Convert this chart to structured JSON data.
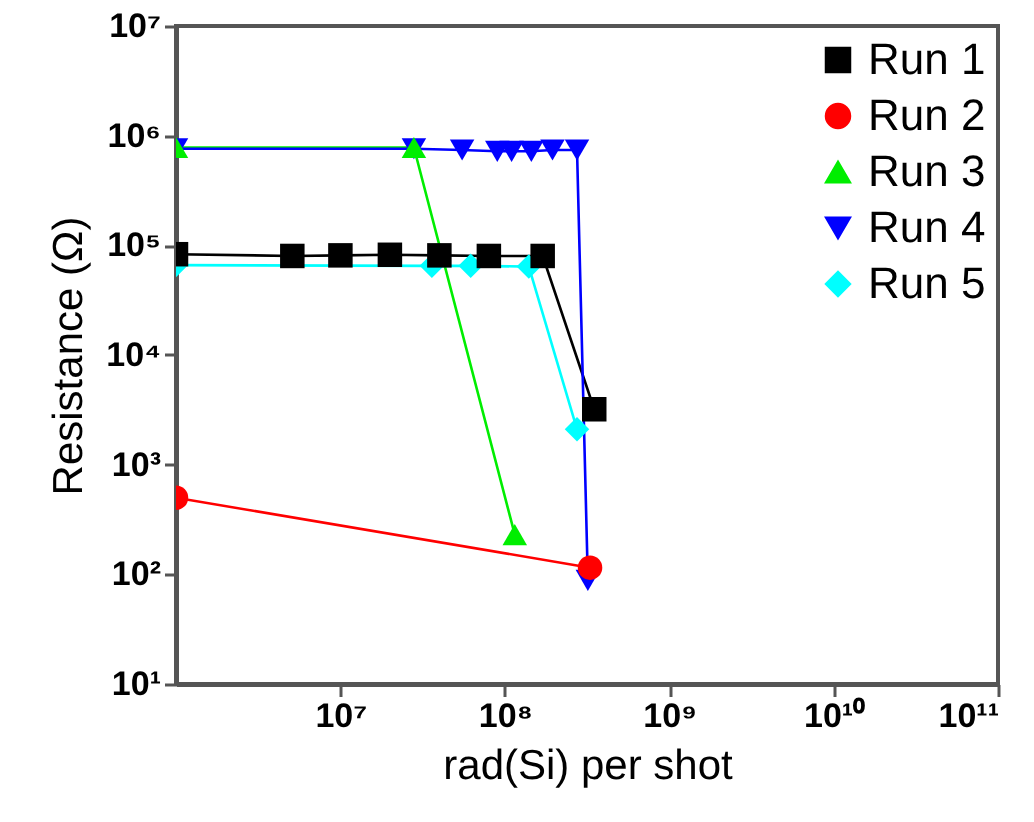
{
  "chart_data": {
    "type": "line",
    "xlabel": "rad(Si) per shot",
    "ylabel": "Resistance (Ω)",
    "log": "xy",
    "grid": false,
    "legend": "top right",
    "xlim": [
      1000000,
      100000000000
    ],
    "ylim": [
      10,
      10000000
    ],
    "xticks": [
      {
        "value": 10000000,
        "label": "10⁷"
      },
      {
        "value": 100000000,
        "label": "10⁸"
      },
      {
        "value": 1000000000,
        "label": "10⁹"
      },
      {
        "value": 10000000000,
        "label": "10¹⁰"
      },
      {
        "value": 100000000000,
        "label": "10¹¹"
      }
    ],
    "yticks": [
      {
        "value": 10,
        "label": "10¹"
      },
      {
        "value": 100,
        "label": "10²"
      },
      {
        "value": 1000,
        "label": "10³"
      },
      {
        "value": 10000,
        "label": "10⁴"
      },
      {
        "value": 100000,
        "label": "10⁵"
      },
      {
        "value": 1000000,
        "label": "10⁶"
      },
      {
        "value": 10000000,
        "label": "10⁷"
      }
    ],
    "series": [
      {
        "name": "Run 1",
        "color": "#000000",
        "marker": "square",
        "x": [
          1000000,
          5100000,
          10000000,
          20000000,
          40000000,
          80000000,
          170000000,
          350000000
        ],
        "values": [
          83000,
          80000,
          81000,
          82000,
          81000,
          80000,
          80000,
          3200
        ]
      },
      {
        "name": "Run 2",
        "color": "#ff0000",
        "marker": "circle",
        "x": [
          1000000,
          330000000
        ],
        "values": [
          500,
          115
        ]
      },
      {
        "name": "Run 3",
        "color": "#00ee00",
        "marker": "triangle",
        "x": [
          1000000,
          28000000,
          115000000
        ],
        "values": [
          780000,
          780000,
          230
        ]
      },
      {
        "name": "Run 4",
        "color": "#0000ff",
        "marker": "triangle-down",
        "x": [
          1000000,
          28000000,
          55000000,
          90000000,
          110000000,
          145000000,
          195000000,
          275000000,
          320000000
        ],
        "values": [
          760000,
          760000,
          740000,
          720000,
          720000,
          720000,
          740000,
          740000,
          88
        ]
      },
      {
        "name": "Run 5",
        "color": "#00ffff",
        "marker": "diamond",
        "x": [
          1000000,
          36000000,
          62000000,
          140000000,
          275000000
        ],
        "values": [
          66000,
          65000,
          65000,
          64000,
          2100
        ]
      }
    ]
  }
}
